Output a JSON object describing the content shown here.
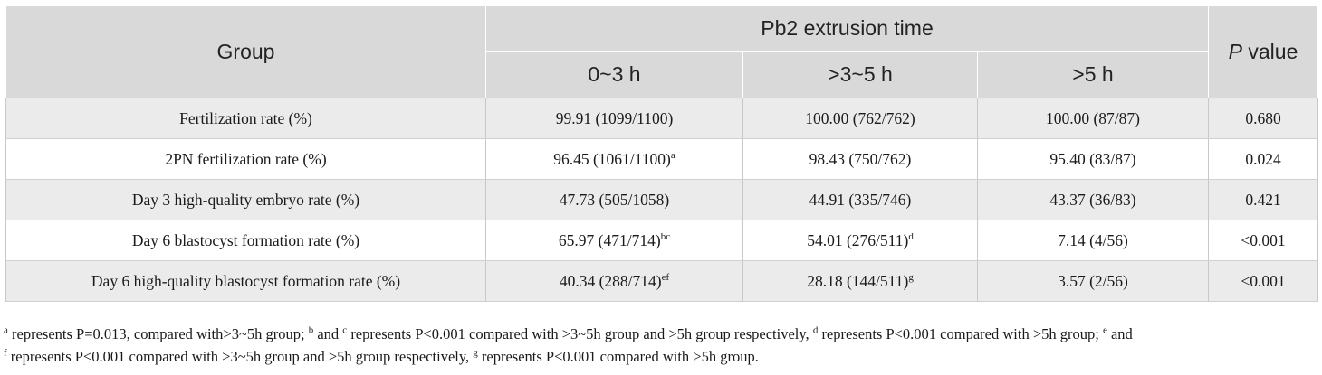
{
  "table": {
    "group_header": "Group",
    "time_header": "Pb2 extrusion time",
    "p_header_italic": "P",
    "p_header_rest": " value",
    "sub_headers": [
      "0~3 h",
      ">3~5 h",
      ">5 h"
    ],
    "rows": [
      {
        "label": "Fertilization rate (%)",
        "c1": "99.91 (1099/1100)",
        "c1_sup": "",
        "c2": "100.00 (762/762)",
        "c2_sup": "",
        "c3": "100.00 (87/87)",
        "p": "0.680"
      },
      {
        "label": "2PN fertilization rate (%)",
        "c1": "96.45 (1061/1100)",
        "c1_sup": "a",
        "c2": "98.43 (750/762)",
        "c2_sup": "",
        "c3": "95.40 (83/87)",
        "p": "0.024"
      },
      {
        "label": "Day 3 high-quality embryo rate (%)",
        "c1": "47.73 (505/1058)",
        "c1_sup": "",
        "c2": "44.91 (335/746)",
        "c2_sup": "",
        "c3": "43.37 (36/83)",
        "p": "0.421"
      },
      {
        "label": "Day 6 blastocyst formation rate (%)",
        "c1": "65.97 (471/714)",
        "c1_sup": "bc",
        "c2": "54.01 (276/511)",
        "c2_sup": "d",
        "c3": "7.14 (4/56)",
        "p": "<0.001"
      },
      {
        "label": "Day 6 high-quality blastocyst formation rate (%)",
        "c1": "40.34 (288/714)",
        "c1_sup": "ef",
        "c2": "28.18 (144/511)",
        "c2_sup": "g",
        "c3": "3.57 (2/56)",
        "p": "<0.001"
      }
    ]
  },
  "footnote": {
    "s_a": "a",
    "t1": " represents P=0.013, compared with>3~5h group; ",
    "s_b": "b",
    "t2": " and ",
    "s_c": "c",
    "t3": " represents P<0.001 compared with >3~5h group and >5h group respectively, ",
    "s_d": "d",
    "t4": " represents P<0.001 compared with >5h group; ",
    "s_e": "e",
    "t5": " and ",
    "s_f": "f",
    "t6": " represents P<0.001 compared with >3~5h group and >5h group respectively, ",
    "s_g": "g",
    "t7": " represents P<0.001 compared with >5h group."
  }
}
